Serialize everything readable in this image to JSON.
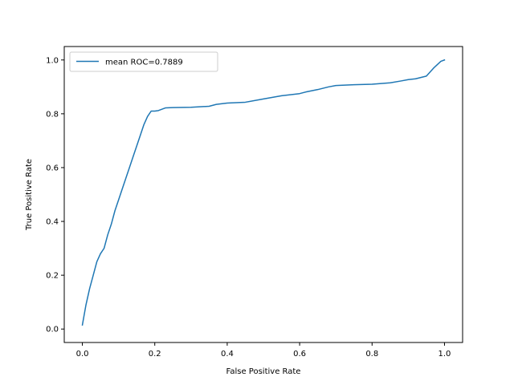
{
  "chart_data": {
    "type": "line",
    "title": "",
    "xlabel": "False Positive Rate",
    "ylabel": "True Positive Rate",
    "xlim": [
      -0.05,
      1.05
    ],
    "ylim": [
      -0.05,
      1.05
    ],
    "xticks": [
      0.0,
      0.2,
      0.4,
      0.6,
      0.8,
      1.0
    ],
    "yticks": [
      0.0,
      0.2,
      0.4,
      0.6,
      0.8,
      1.0
    ],
    "xtick_labels": [
      "0.0",
      "0.2",
      "0.4",
      "0.6",
      "0.8",
      "1.0"
    ],
    "ytick_labels": [
      "0.0",
      "0.2",
      "0.4",
      "0.6",
      "0.8",
      "1.0"
    ],
    "grid": false,
    "legend_position": "top-left",
    "series": [
      {
        "name": "mean ROC=0.7889",
        "color": "#1f77b4",
        "x": [
          0.0,
          0.01,
          0.02,
          0.03,
          0.04,
          0.05,
          0.06,
          0.07,
          0.08,
          0.09,
          0.1,
          0.11,
          0.12,
          0.13,
          0.14,
          0.15,
          0.16,
          0.17,
          0.18,
          0.19,
          0.2,
          0.21,
          0.23,
          0.25,
          0.3,
          0.35,
          0.37,
          0.4,
          0.45,
          0.5,
          0.55,
          0.6,
          0.62,
          0.65,
          0.68,
          0.7,
          0.75,
          0.8,
          0.85,
          0.88,
          0.9,
          0.92,
          0.95,
          0.97,
          0.99,
          1.0
        ],
        "y": [
          0.015,
          0.09,
          0.15,
          0.2,
          0.25,
          0.28,
          0.3,
          0.35,
          0.39,
          0.44,
          0.48,
          0.52,
          0.56,
          0.6,
          0.64,
          0.68,
          0.72,
          0.76,
          0.79,
          0.81,
          0.81,
          0.812,
          0.822,
          0.823,
          0.824,
          0.828,
          0.835,
          0.84,
          0.843,
          0.855,
          0.867,
          0.875,
          0.882,
          0.89,
          0.9,
          0.905,
          0.908,
          0.91,
          0.915,
          0.922,
          0.927,
          0.93,
          0.94,
          0.97,
          0.995,
          1.0
        ]
      }
    ]
  }
}
